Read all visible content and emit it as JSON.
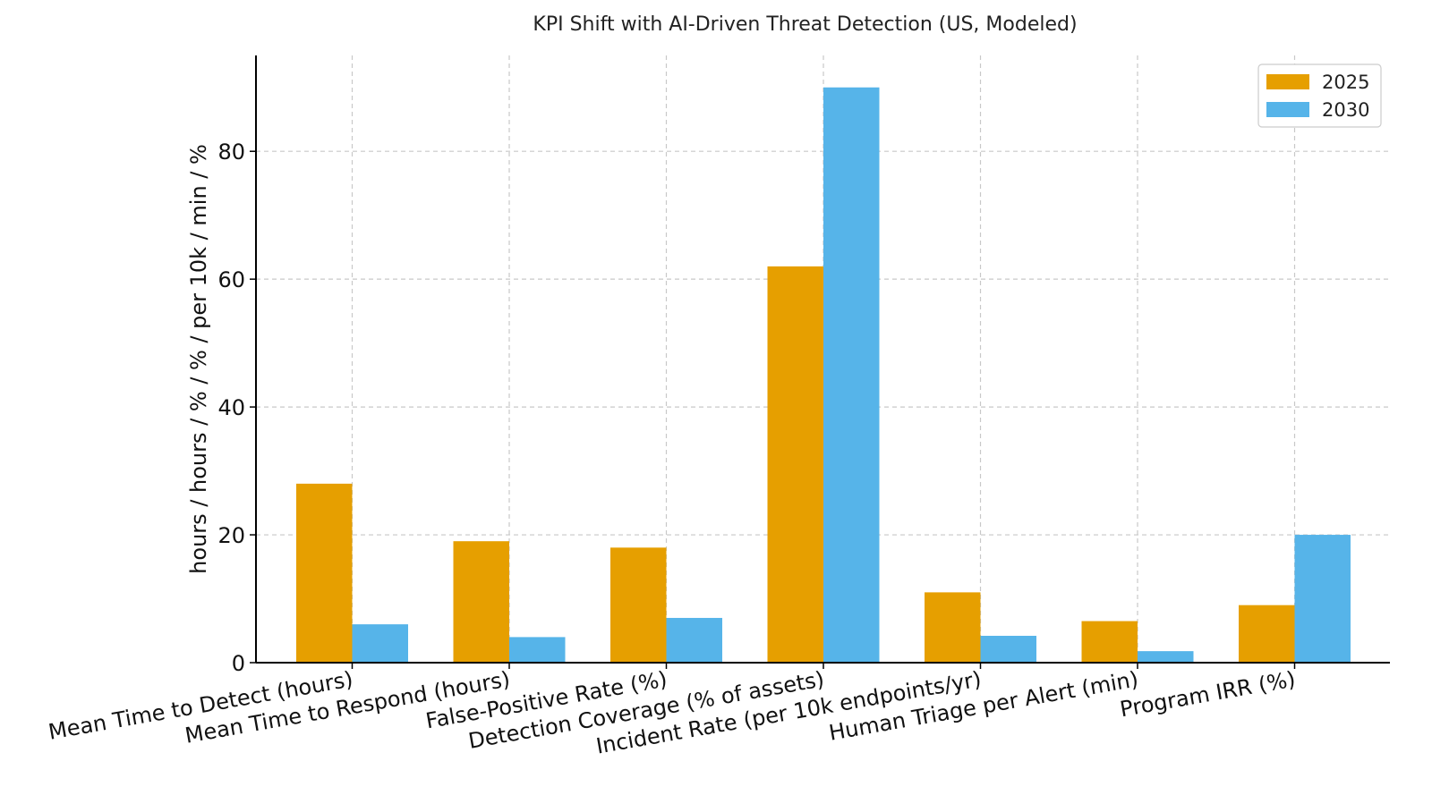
{
  "chart_data": {
    "type": "bar",
    "title": "KPI Shift with AI-Driven Threat Detection (US, Modeled)",
    "xlabel": "",
    "ylabel": "hours / hours / % / % / per 10k / min / %",
    "categories": [
      "Mean Time to Detect (hours)",
      "Mean Time to Respond (hours)",
      "False-Positive Rate (%)",
      "Detection Coverage (% of assets)",
      "Incident Rate (per 10k endpoints/yr)",
      "Human Triage per Alert (min)",
      "Program IRR (%)"
    ],
    "series": [
      {
        "name": "2025",
        "color": "#E69F00",
        "values": [
          28,
          19,
          18,
          62,
          11,
          6.5,
          9
        ]
      },
      {
        "name": "2030",
        "color": "#56B4E9",
        "values": [
          6,
          4,
          7,
          90,
          4.2,
          1.8,
          20
        ]
      }
    ],
    "ylim": [
      0,
      95
    ],
    "yticks": [
      "0",
      "20",
      "40",
      "60",
      "80"
    ],
    "grid": true,
    "legend_position": "top-right"
  }
}
